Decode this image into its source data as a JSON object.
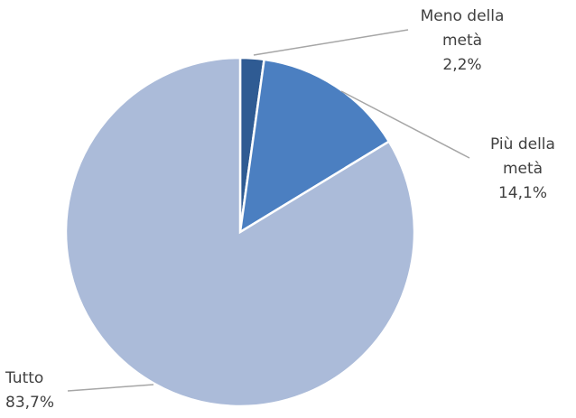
{
  "chart_data": {
    "type": "pie",
    "categories": [
      "Meno della metà",
      "Più della metà",
      "Tutto"
    ],
    "values": [
      2.2,
      14.1,
      83.7
    ],
    "value_labels": [
      "2,2%",
      "14,1%",
      "83,7%"
    ],
    "colors": [
      "#2f5b93",
      "#4b7fc1",
      "#abbbd9"
    ]
  }
}
